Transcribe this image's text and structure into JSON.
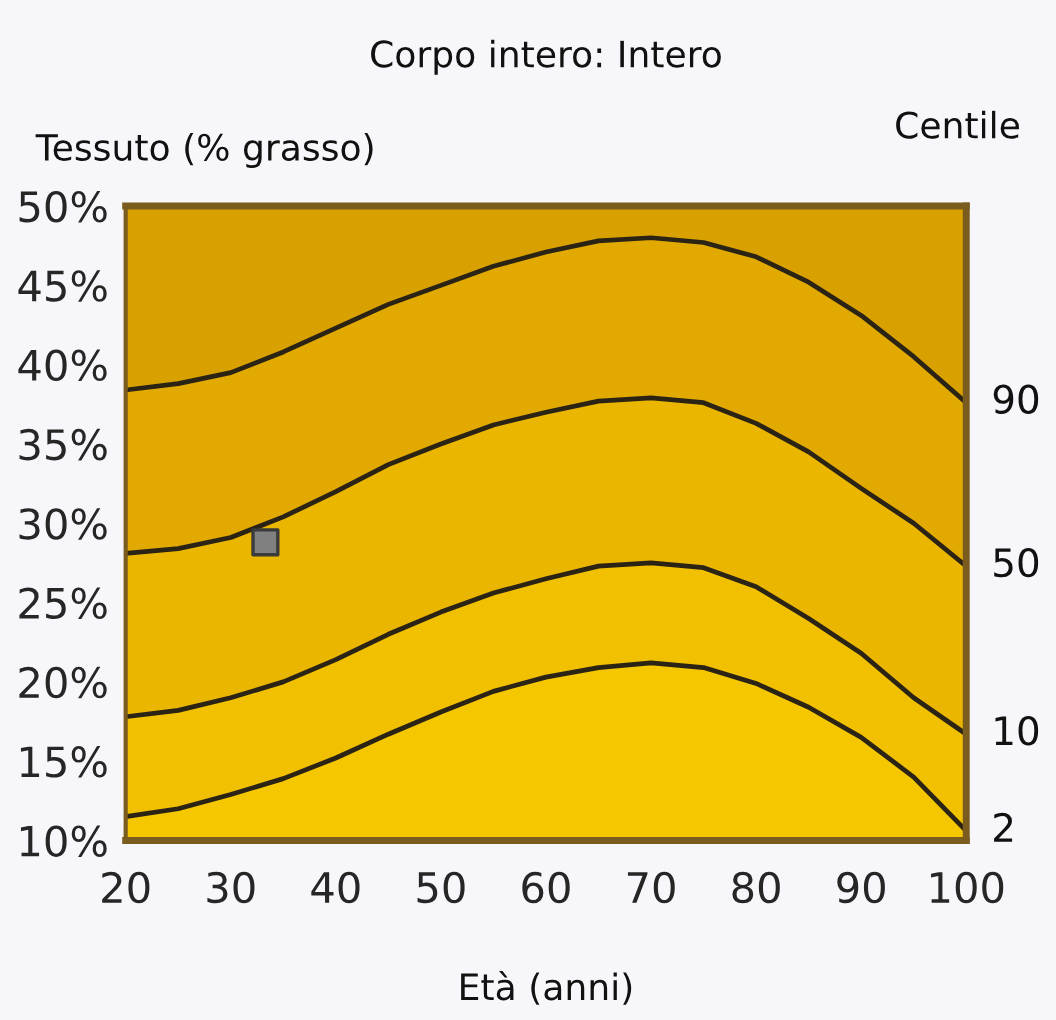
{
  "chart_data": {
    "type": "area",
    "title": "Corpo intero: Intero",
    "xlabel": "Età (anni)",
    "ylabel": "Tessuto (% grasso)",
    "y2label": "Centile",
    "x": [
      20,
      25,
      30,
      35,
      40,
      45,
      50,
      55,
      60,
      65,
      70,
      75,
      80,
      85,
      90,
      95,
      100
    ],
    "xlim": [
      20,
      100
    ],
    "xticks": [
      20,
      30,
      40,
      50,
      60,
      70,
      80,
      90,
      100
    ],
    "ylim": [
      10,
      50
    ],
    "yticks": [
      {
        "value": 10,
        "label": "10%"
      },
      {
        "value": 15,
        "label": "15%"
      },
      {
        "value": 20,
        "label": "20%"
      },
      {
        "value": 25,
        "label": "25%"
      },
      {
        "value": 30,
        "label": "30%"
      },
      {
        "value": 35,
        "label": "35%"
      },
      {
        "value": 40,
        "label": "40%"
      },
      {
        "value": 45,
        "label": "45%"
      },
      {
        "value": 50,
        "label": "50%"
      }
    ],
    "series": [
      {
        "color": "#d9a100",
        "values": [
          50,
          50,
          50,
          50,
          50,
          50,
          50,
          50,
          50,
          50,
          50,
          50,
          50,
          50,
          50,
          50,
          50
        ]
      },
      {
        "name": "90",
        "color": "#e2aa00",
        "values": [
          38.4,
          38.8,
          39.5,
          40.8,
          42.3,
          43.8,
          45.0,
          46.2,
          47.1,
          47.8,
          48.0,
          47.7,
          46.8,
          45.2,
          43.1,
          40.5,
          37.6
        ]
      },
      {
        "name": "50",
        "color": "#ebb600",
        "values": [
          28.1,
          28.4,
          29.1,
          30.4,
          32.0,
          33.7,
          35.0,
          36.2,
          37.0,
          37.7,
          37.9,
          37.6,
          36.3,
          34.5,
          32.2,
          30.0,
          27.3
        ]
      },
      {
        "name": "10",
        "color": "#f1c000",
        "values": [
          17.8,
          18.2,
          19.0,
          20.0,
          21.4,
          23.0,
          24.4,
          25.6,
          26.5,
          27.3,
          27.5,
          27.2,
          26.0,
          24.0,
          21.8,
          19.0,
          16.7
        ]
      },
      {
        "name": "2",
        "color": "#f5c700",
        "values": [
          11.5,
          12.0,
          12.9,
          13.9,
          15.2,
          16.7,
          18.1,
          19.4,
          20.3,
          20.9,
          21.2,
          20.9,
          19.9,
          18.4,
          16.5,
          14.0,
          10.6
        ]
      },
      {
        "type": "scatter",
        "x": [
          33.3
        ],
        "values": [
          28.8
        ],
        "color": "#808080",
        "marker": "square"
      }
    ]
  }
}
